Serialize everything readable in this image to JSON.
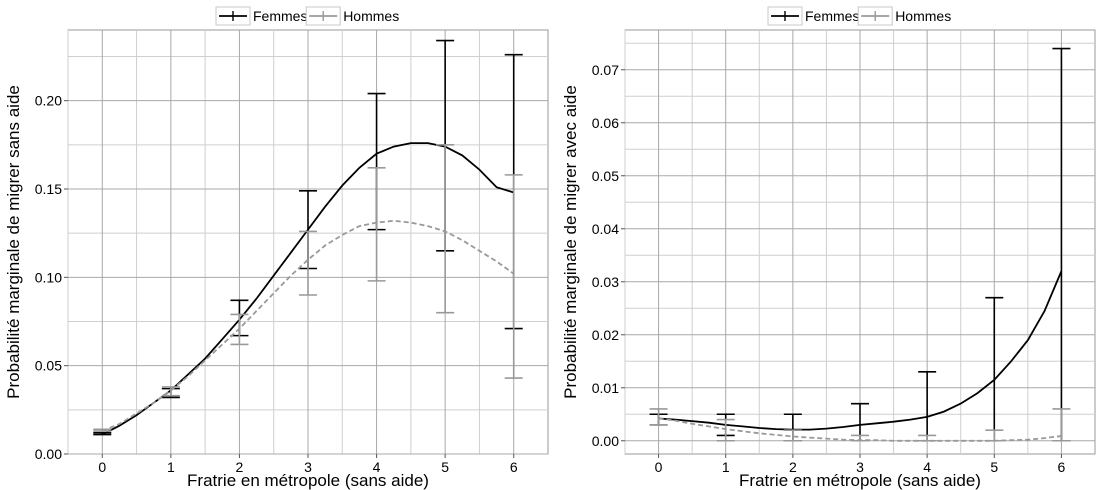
{
  "chart_data": [
    {
      "type": "line",
      "xlabel": "Fratrie en métropole (sans aide)",
      "ylabel": "Probabilité marginale de migrer sans aide",
      "xlim": [
        -0.5,
        6.5
      ],
      "ylim": [
        0,
        0.24
      ],
      "xticks": [
        0,
        1,
        2,
        3,
        4,
        5,
        6
      ],
      "xtick_labels": [
        "0",
        "1",
        "2",
        "3",
        "4",
        "5",
        "6"
      ],
      "yticks": [
        0,
        0.05,
        0.1,
        0.15,
        0.2
      ],
      "ytick_labels": [
        "0.00",
        "0.05",
        "0.10",
        "0.15",
        "0.20"
      ],
      "grid": true,
      "legend_position": "top-center",
      "series": [
        {
          "name": "Femmes",
          "color": "#000000",
          "line_style": "solid",
          "curve_x": [
            0,
            0.25,
            0.5,
            0.75,
            1,
            1.25,
            1.5,
            1.75,
            2,
            2.25,
            2.5,
            2.75,
            3,
            3.25,
            3.5,
            3.75,
            4,
            4.25,
            4.5,
            4.75,
            5,
            5.25,
            5.5,
            5.75,
            6
          ],
          "curve_y": [
            0.011,
            0.016,
            0.022,
            0.029,
            0.036,
            0.045,
            0.054,
            0.065,
            0.076,
            0.088,
            0.101,
            0.114,
            0.127,
            0.14,
            0.152,
            0.162,
            0.17,
            0.174,
            0.176,
            0.176,
            0.174,
            0.169,
            0.161,
            0.151,
            0.148
          ],
          "error_x": [
            0,
            1,
            2,
            3,
            4,
            5,
            6
          ],
          "error_low": [
            0.011,
            0.032,
            0.067,
            0.105,
            0.127,
            0.115,
            0.071
          ],
          "error_high": [
            0.012,
            0.037,
            0.087,
            0.149,
            0.204,
            0.234,
            0.226
          ]
        },
        {
          "name": "Hommes",
          "color": "#999999",
          "line_style": "dashed",
          "curve_x": [
            0,
            0.25,
            0.5,
            0.75,
            1,
            1.25,
            1.5,
            1.75,
            2,
            2.25,
            2.5,
            2.75,
            3,
            3.25,
            3.5,
            3.75,
            4,
            4.25,
            4.5,
            4.75,
            5,
            5.25,
            5.5,
            5.75,
            6
          ],
          "curve_y": [
            0.013,
            0.017,
            0.023,
            0.029,
            0.036,
            0.044,
            0.053,
            0.062,
            0.071,
            0.081,
            0.091,
            0.101,
            0.11,
            0.118,
            0.124,
            0.129,
            0.131,
            0.132,
            0.131,
            0.129,
            0.126,
            0.121,
            0.115,
            0.109,
            0.102
          ],
          "error_x": [
            0,
            1,
            2,
            3,
            4,
            5,
            6
          ],
          "error_low": [
            0.013,
            0.033,
            0.062,
            0.09,
            0.098,
            0.08,
            0.043
          ],
          "error_high": [
            0.014,
            0.038,
            0.079,
            0.126,
            0.162,
            0.175,
            0.158
          ]
        }
      ]
    },
    {
      "type": "line",
      "xlabel": "Fratrie en métropole (sans aide)",
      "ylabel": "Probabilité marginale de migrer avec aide",
      "xlim": [
        -0.5,
        6.5
      ],
      "ylim": [
        -0.0025,
        0.0775
      ],
      "xticks": [
        0,
        1,
        2,
        3,
        4,
        5,
        6
      ],
      "xtick_labels": [
        "0",
        "1",
        "2",
        "3",
        "4",
        "5",
        "6"
      ],
      "yticks": [
        0,
        0.01,
        0.02,
        0.03,
        0.04,
        0.05,
        0.06,
        0.07
      ],
      "ytick_labels": [
        "0.00",
        "0.01",
        "0.02",
        "0.03",
        "0.04",
        "0.05",
        "0.06",
        "0.07"
      ],
      "grid": true,
      "legend_position": "top-center",
      "series": [
        {
          "name": "Femmes",
          "color": "#000000",
          "line_style": "solid",
          "curve_x": [
            0,
            0.25,
            0.5,
            0.75,
            1,
            1.25,
            1.5,
            1.75,
            2,
            2.25,
            2.5,
            2.75,
            3,
            3.25,
            3.5,
            3.75,
            4,
            4.25,
            4.5,
            4.75,
            5,
            5.25,
            5.5,
            5.75,
            6
          ],
          "curve_y": [
            0.0042,
            0.004,
            0.0037,
            0.0034,
            0.003,
            0.0027,
            0.0024,
            0.0022,
            0.0021,
            0.0021,
            0.0023,
            0.0026,
            0.003,
            0.0033,
            0.0036,
            0.004,
            0.0045,
            0.0055,
            0.007,
            0.009,
            0.0115,
            0.015,
            0.019,
            0.0245,
            0.032
          ],
          "error_x": [
            0,
            1,
            2,
            3,
            4,
            5,
            6
          ],
          "error_low": [
            0.003,
            0.001,
            0.0,
            0.0,
            0.0,
            0.0,
            0.0
          ],
          "error_high": [
            0.005,
            0.005,
            0.005,
            0.007,
            0.013,
            0.027,
            0.074
          ]
        },
        {
          "name": "Hommes",
          "color": "#999999",
          "line_style": "dashed",
          "curve_x": [
            0,
            0.25,
            0.5,
            0.75,
            1,
            1.25,
            1.5,
            1.75,
            2,
            2.25,
            2.5,
            2.75,
            3,
            3.25,
            3.5,
            3.75,
            4,
            4.25,
            4.5,
            4.75,
            5,
            5.25,
            5.5,
            5.75,
            6
          ],
          "curve_y": [
            0.0042,
            0.0038,
            0.0032,
            0.0027,
            0.0022,
            0.0018,
            0.0014,
            0.0011,
            0.0008,
            0.0006,
            0.0004,
            0.0002,
            0.0001,
            0.0001,
            0.0,
            0.0,
            0.0,
            0.0,
            0.0,
            0.0,
            0.0,
            0.0001,
            0.0002,
            0.0005,
            0.0009
          ],
          "error_x": [
            0,
            1,
            2,
            3,
            4,
            5,
            6
          ],
          "error_low": [
            0.003,
            0.0,
            0.0,
            0.0,
            0.0,
            0.0,
            0.0
          ],
          "error_high": [
            0.006,
            0.004,
            0.002,
            0.001,
            0.001,
            0.002,
            0.006
          ]
        }
      ]
    }
  ]
}
